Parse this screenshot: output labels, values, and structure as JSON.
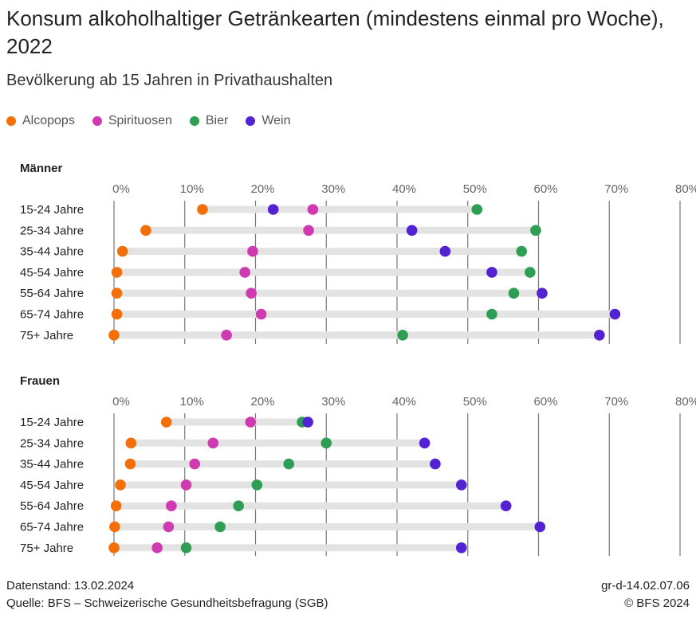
{
  "title": "Konsum alkoholhaltiger Getränkearten (mindestens einmal pro Woche), 2022",
  "subtitle": "Bevölkerung ab 15 Jahren in Privathaushalten",
  "footer": {
    "left1": "Datenstand: 13.02.2024",
    "left2": "Quelle: BFS – Schweizerische Gesundheitsbefragung (SGB)",
    "right1": "gr-d-14.02.07.06",
    "right2": "© BFS 2024"
  },
  "chart_data": [
    {
      "type": "dot",
      "title": "Männer",
      "xlim": [
        0,
        80
      ],
      "ticks": [
        "0%",
        "10%",
        "20%",
        "30%",
        "40%",
        "50%",
        "60%",
        "70%",
        "80%"
      ],
      "grid": true,
      "legend": "top-left",
      "categories": [
        "15-24 Jahre",
        "25-34 Jahre",
        "35-44 Jahre",
        "45-54 Jahre",
        "55-64 Jahre",
        "65-74 Jahre",
        "75+ Jahre"
      ],
      "series": [
        {
          "name": "Alcopops",
          "color": "#f36f0a",
          "values": [
            12.5,
            4.5,
            1.2,
            0.4,
            0.4,
            0.4,
            0.0
          ]
        },
        {
          "name": "Spirituosen",
          "color": "#d03ab0",
          "values": [
            28.1,
            27.5,
            19.6,
            18.5,
            19.4,
            20.8,
            15.9
          ]
        },
        {
          "name": "Bier",
          "color": "#2f9e55",
          "values": [
            51.3,
            59.6,
            57.6,
            58.8,
            56.5,
            53.4,
            40.8
          ]
        },
        {
          "name": "Wein",
          "color": "#5322d2",
          "values": [
            22.5,
            42.1,
            46.8,
            53.4,
            60.5,
            70.8,
            68.6
          ]
        }
      ]
    },
    {
      "type": "dot",
      "title": "Frauen",
      "xlim": [
        0,
        80
      ],
      "ticks": [
        "0%",
        "10%",
        "20%",
        "30%",
        "40%",
        "50%",
        "60%",
        "70%",
        "80%"
      ],
      "grid": true,
      "categories": [
        "15-24 Jahre",
        "25-34 Jahre",
        "35-44 Jahre",
        "45-54 Jahre",
        "55-64 Jahre",
        "65-74 Jahre",
        "75+ Jahre"
      ],
      "series": [
        {
          "name": "Alcopops",
          "color": "#f36f0a",
          "values": [
            7.4,
            2.4,
            2.3,
            0.9,
            0.3,
            0.1,
            0.0
          ]
        },
        {
          "name": "Spirituosen",
          "color": "#d03ab0",
          "values": [
            19.3,
            14.0,
            11.4,
            10.2,
            8.1,
            7.7,
            6.1
          ]
        },
        {
          "name": "Bier",
          "color": "#2f9e55",
          "values": [
            26.6,
            30.0,
            24.7,
            20.2,
            17.6,
            15.0,
            10.2
          ]
        },
        {
          "name": "Wein",
          "color": "#5322d2",
          "values": [
            27.4,
            43.9,
            45.4,
            49.1,
            55.4,
            60.2,
            49.1
          ]
        }
      ]
    }
  ]
}
